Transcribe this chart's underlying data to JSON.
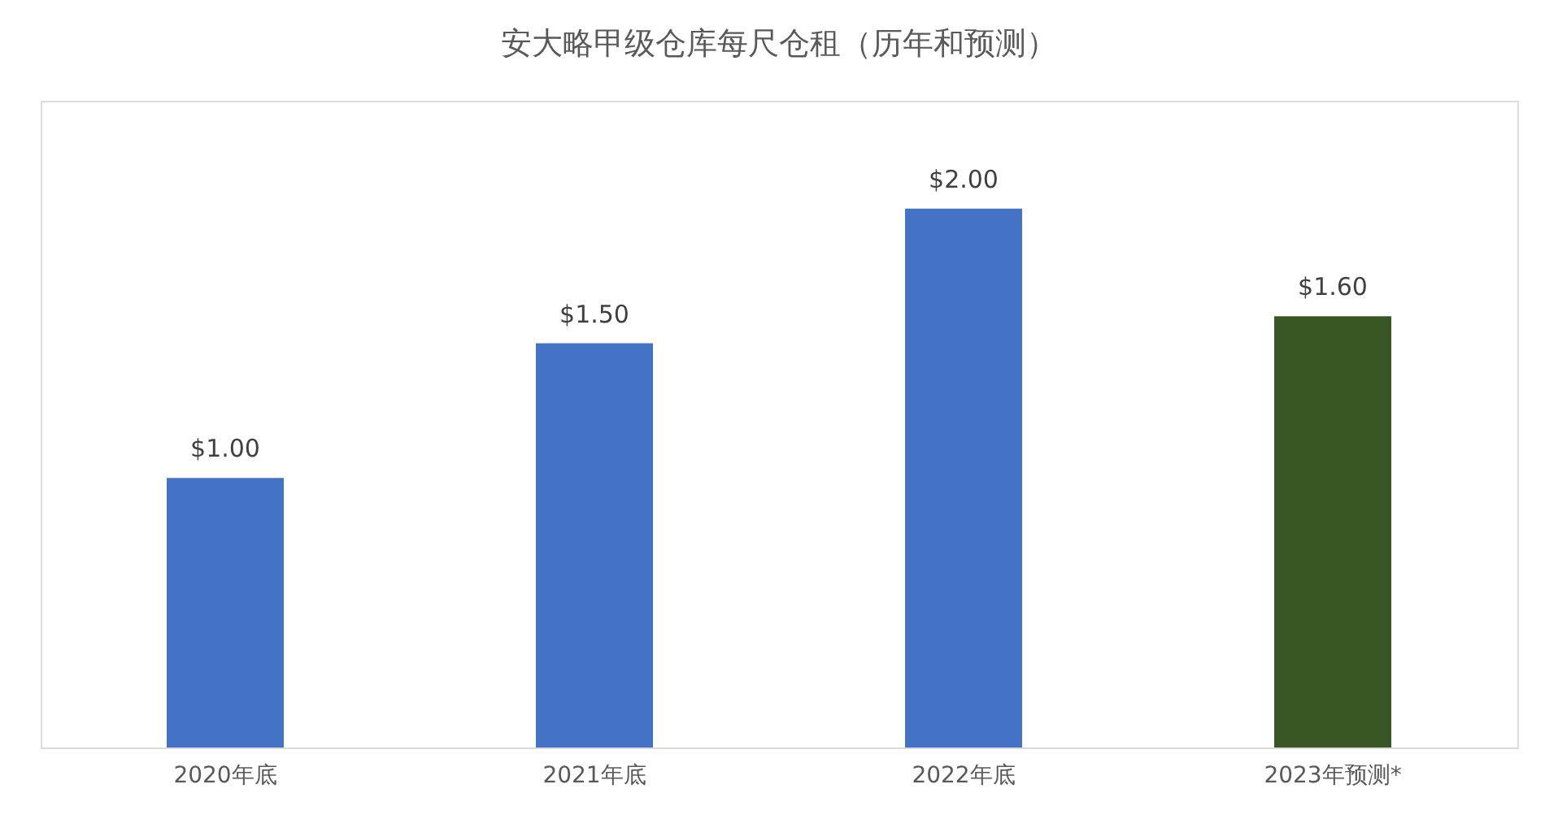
{
  "chart_data": {
    "type": "bar",
    "title": "安大略甲级仓库每尺仓租（历年和预测）",
    "categories": [
      "2020年底",
      "2021年底",
      "2022年底",
      "2023年预测*"
    ],
    "values": [
      1.0,
      1.5,
      2.0,
      1.6
    ],
    "value_labels": [
      "$1.00",
      "$1.50",
      "$2.00",
      "$1.60"
    ],
    "colors": [
      "#4472c4",
      "#4472c4",
      "#4472c4",
      "#375623"
    ],
    "ylim": [
      0,
      2.4
    ],
    "tick_labels": "x",
    "grid": false
  }
}
